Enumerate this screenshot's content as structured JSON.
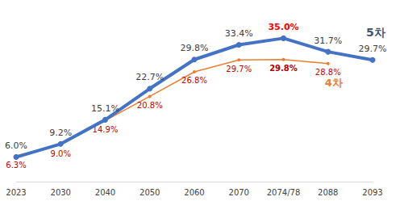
{
  "chart_data": {
    "type": "line",
    "categories": [
      "2023",
      "2030",
      "2040",
      "2050",
      "2060",
      "2070",
      "2074/78",
      "2088",
      "2093"
    ],
    "series": [
      {
        "name": "5차",
        "color": "#4472c4",
        "marker": "circle",
        "values": [
          6.0,
          9.2,
          15.1,
          22.7,
          29.8,
          33.4,
          35.0,
          31.7,
          29.7
        ],
        "value_labels": [
          "6.0%",
          "9.2%",
          "15.1%",
          "22.7%",
          "29.8%",
          "33.4%",
          "35.0%",
          "31.7%",
          "29.7%"
        ]
      },
      {
        "name": "4차",
        "color": "#ed7d31",
        "marker": "circle",
        "values": [
          6.3,
          9.0,
          14.9,
          20.8,
          26.8,
          29.7,
          29.8,
          28.8,
          null
        ],
        "value_labels": [
          "6.3%",
          "9.0%",
          "14.9%",
          "20.8%",
          "26.8%",
          "29.7%",
          "29.8%",
          "28.8%",
          null
        ]
      }
    ],
    "data_labels": true,
    "tick_labels": "x",
    "grid": false
  }
}
